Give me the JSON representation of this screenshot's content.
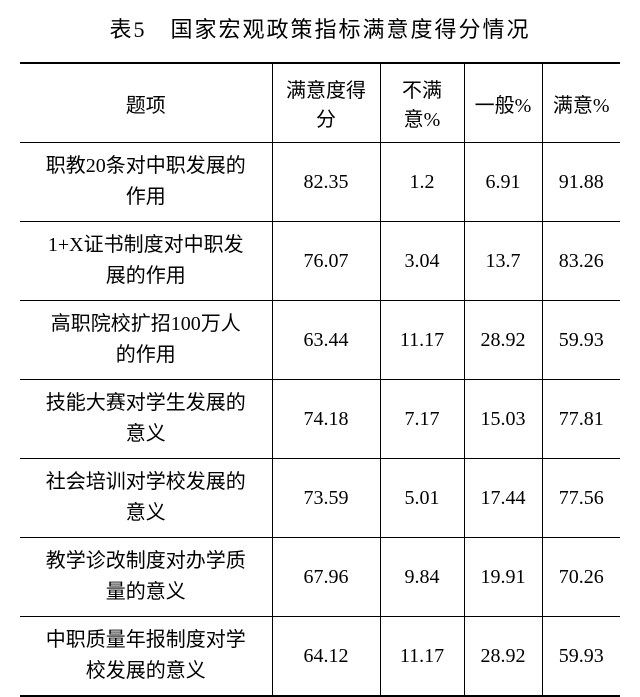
{
  "title": "表5　国家宏观政策指标满意度得分情况",
  "columns": {
    "topic": "题项",
    "score": "满意度得分",
    "unsatisfied": "不满意%",
    "neutral": "一般%",
    "satisfied": "满意%"
  },
  "rows": [
    {
      "topic_l1": "职教20条对中职发展的",
      "topic_l2": "作用",
      "score": "82.35",
      "unsatisfied": "1.2",
      "neutral": "6.91",
      "satisfied": "91.88"
    },
    {
      "topic_l1": "1+X证书制度对中职发",
      "topic_l2": "展的作用",
      "score": "76.07",
      "unsatisfied": "3.04",
      "neutral": "13.7",
      "satisfied": "83.26"
    },
    {
      "topic_l1": "高职院校扩招100万人",
      "topic_l2": "的作用",
      "score": "63.44",
      "unsatisfied": "11.17",
      "neutral": "28.92",
      "satisfied": "59.93"
    },
    {
      "topic_l1": "技能大赛对学生发展的",
      "topic_l2": "意义",
      "score": "74.18",
      "unsatisfied": "7.17",
      "neutral": "15.03",
      "satisfied": "77.81"
    },
    {
      "topic_l1": "社会培训对学校发展的",
      "topic_l2": "意义",
      "score": "73.59",
      "unsatisfied": "5.01",
      "neutral": "17.44",
      "satisfied": "77.56"
    },
    {
      "topic_l1": "教学诊改制度对办学质",
      "topic_l2": "量的意义",
      "score": "67.96",
      "unsatisfied": "9.84",
      "neutral": "19.91",
      "satisfied": "70.26"
    },
    {
      "topic_l1": "中职质量年报制度对学",
      "topic_l2": "校发展的意义",
      "score": "64.12",
      "unsatisfied": "11.17",
      "neutral": "28.92",
      "satisfied": "59.93"
    }
  ],
  "style": {
    "type": "table",
    "background_color": "#ffffff",
    "border_color": "#000000",
    "text_color": "#000000",
    "title_fontsize": 22,
    "cell_fontsize": 20,
    "outer_border_width": 2,
    "inner_border_width": 1,
    "column_widths_pct": [
      42,
      18,
      14,
      13,
      13
    ],
    "column_alignment": [
      "center",
      "center",
      "center",
      "center",
      "center"
    ],
    "font_family": "SimSun"
  }
}
